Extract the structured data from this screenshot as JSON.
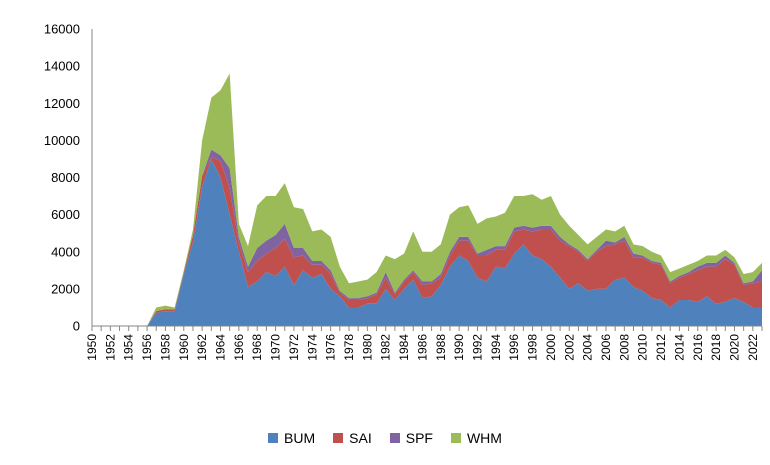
{
  "chart_data": {
    "type": "area",
    "stacked": true,
    "ylim": [
      0,
      16000
    ],
    "y_ticks": [
      0,
      2000,
      4000,
      6000,
      8000,
      10000,
      12000,
      14000,
      16000
    ],
    "x": [
      1950,
      1951,
      1952,
      1953,
      1954,
      1955,
      1956,
      1957,
      1958,
      1959,
      1960,
      1961,
      1962,
      1963,
      1964,
      1965,
      1966,
      1967,
      1968,
      1969,
      1970,
      1971,
      1972,
      1973,
      1974,
      1975,
      1976,
      1977,
      1978,
      1979,
      1980,
      1981,
      1982,
      1983,
      1984,
      1985,
      1986,
      1987,
      1988,
      1989,
      1990,
      1991,
      1992,
      1993,
      1994,
      1995,
      1996,
      1997,
      1998,
      1999,
      2000,
      2001,
      2002,
      2003,
      2004,
      2005,
      2006,
      2007,
      2008,
      2009,
      2010,
      2011,
      2012,
      2013,
      2014,
      2015,
      2016,
      2017,
      2018,
      2019,
      2020,
      2021,
      2022,
      2023
    ],
    "x_tick_labels": [
      1950,
      1952,
      1954,
      1956,
      1958,
      1960,
      1962,
      1964,
      1966,
      1968,
      1970,
      1972,
      1974,
      1976,
      1978,
      1980,
      1982,
      1984,
      1986,
      1988,
      1990,
      1992,
      1994,
      1996,
      1998,
      2000,
      2002,
      2004,
      2006,
      2008,
      2010,
      2012,
      2014,
      2016,
      2018,
      2020,
      2022
    ],
    "legend_position": "bottom",
    "series": [
      {
        "name": "BUM",
        "color": "#4F81BD",
        "values": [
          0,
          0,
          0,
          0,
          0,
          0,
          0,
          700,
          800,
          800,
          2800,
          4500,
          7500,
          9000,
          8000,
          6000,
          4000,
          2100,
          2400,
          2900,
          2700,
          3200,
          2200,
          3000,
          2600,
          2800,
          2000,
          1600,
          1000,
          1000,
          1200,
          1200,
          2000,
          1400,
          2000,
          2500,
          1500,
          1600,
          2200,
          3200,
          3800,
          3500,
          2600,
          2400,
          3200,
          3100,
          3900,
          4400,
          3800,
          3600,
          3200,
          2600,
          2000,
          2300,
          1900,
          2000,
          2000,
          2500,
          2600,
          2100,
          1900,
          1500,
          1400,
          1000,
          1400,
          1400,
          1300,
          1600,
          1200,
          1300,
          1500,
          1300,
          1000,
          1000
        ]
      },
      {
        "name": "SAI",
        "color": "#C0504D",
        "values": [
          0,
          0,
          0,
          0,
          0,
          0,
          0,
          100,
          100,
          100,
          100,
          400,
          600,
          100,
          900,
          1400,
          500,
          800,
          1100,
          1000,
          1500,
          1500,
          1500,
          800,
          700,
          500,
          800,
          200,
          400,
          400,
          300,
          500,
          600,
          300,
          400,
          400,
          700,
          700,
          400,
          600,
          800,
          1100,
          1200,
          1400,
          900,
          1000,
          1200,
          800,
          1300,
          1600,
          2000,
          2000,
          2300,
          1700,
          1600,
          2000,
          2300,
          1900,
          2000,
          1600,
          1800,
          1900,
          1900,
          1300,
          1200,
          1400,
          1700,
          1600,
          2000,
          2300,
          1800,
          900,
          1300,
          1400
        ]
      },
      {
        "name": "SPF",
        "color": "#8064A2",
        "values": [
          0,
          0,
          0,
          0,
          0,
          0,
          0,
          0,
          0,
          0,
          0,
          0,
          0,
          400,
          300,
          1100,
          300,
          300,
          700,
          700,
          700,
          800,
          500,
          400,
          200,
          200,
          200,
          100,
          100,
          100,
          100,
          100,
          300,
          100,
          100,
          100,
          200,
          100,
          200,
          200,
          200,
          200,
          100,
          300,
          200,
          200,
          200,
          200,
          200,
          200,
          200,
          200,
          100,
          100,
          100,
          100,
          300,
          100,
          200,
          200,
          100,
          100,
          100,
          100,
          100,
          100,
          200,
          200,
          200,
          200,
          100,
          100,
          100,
          600
        ]
      },
      {
        "name": "WHM",
        "color": "#9BBB59",
        "values": [
          0,
          0,
          0,
          0,
          0,
          0,
          0,
          200,
          200,
          100,
          100,
          300,
          1900,
          2800,
          3500,
          5100,
          700,
          1100,
          2300,
          2400,
          2100,
          2200,
          2200,
          2100,
          1600,
          1700,
          1800,
          1300,
          800,
          900,
          900,
          1100,
          900,
          1800,
          1400,
          2100,
          1600,
          1600,
          1600,
          2000,
          1600,
          1700,
          1600,
          1700,
          1600,
          1800,
          1700,
          1600,
          1800,
          1400,
          1600,
          1200,
          1000,
          800,
          800,
          700,
          600,
          600,
          600,
          500,
          500,
          500,
          400,
          500,
          400,
          400,
          300,
          400,
          400,
          300,
          300,
          500,
          500,
          400
        ]
      }
    ]
  }
}
